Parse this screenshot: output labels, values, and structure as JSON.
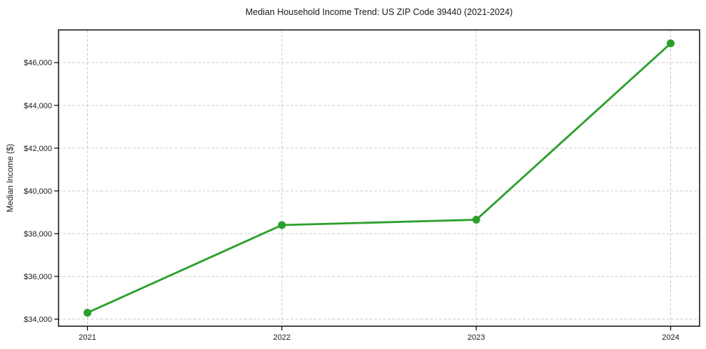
{
  "chart_data": {
    "type": "line",
    "title": "Median Household Income Trend: US ZIP Code 39440 (2021-2024)",
    "xlabel": "",
    "ylabel": "Median Income ($)",
    "x": [
      2021,
      2022,
      2023,
      2024
    ],
    "xtick_labels": [
      "2021",
      "2022",
      "2023",
      "2024"
    ],
    "series": [
      {
        "name": "Median Household Income",
        "values": [
          34300,
          38400,
          38650,
          46900
        ]
      }
    ],
    "yticks": [
      34000,
      36000,
      38000,
      40000,
      42000,
      44000,
      46000
    ],
    "ytick_labels": [
      "$34,000",
      "$36,000",
      "$38,000",
      "$40,000",
      "$42,000",
      "$44,000",
      "$46,000"
    ],
    "ylim": [
      33670,
      47530
    ],
    "grid": true,
    "grid_style": "dashed",
    "legend_position": "none",
    "colors": {
      "line": "#2ca02c",
      "marker": "#2ca02c",
      "grid": "#cccccc",
      "text": "#1a1a1a",
      "spine": "#000000",
      "background": "#ffffff"
    }
  }
}
